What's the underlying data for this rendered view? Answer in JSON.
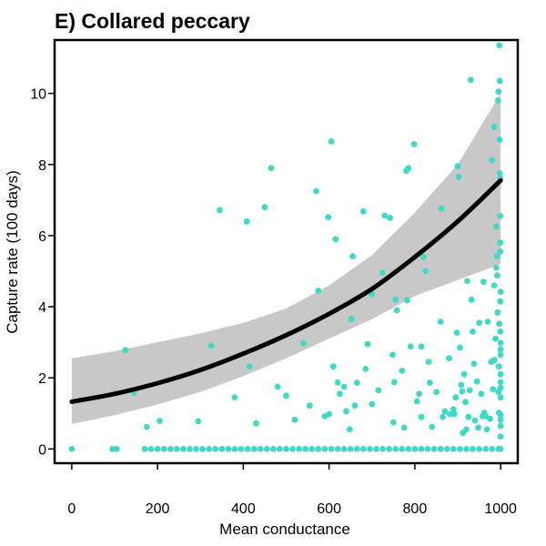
{
  "colors": {
    "points": "#40d9c8",
    "ribbon": "#c8c8c8",
    "fit": "#000000",
    "frame": "#000000"
  },
  "chart_data": {
    "type": "scatter",
    "title": "E) Collared peccary",
    "xlabel": "Mean conductance",
    "ylabel": "Capture rate (100 days)",
    "xlim": [
      -40,
      1040
    ],
    "ylim": [
      -0.4,
      11.5
    ],
    "xticks": [
      0,
      200,
      400,
      600,
      800,
      1000
    ],
    "yticks": [
      0,
      2,
      4,
      6,
      8,
      10
    ],
    "grid": false,
    "legend": "none",
    "fit": {
      "x": [
        0,
        100,
        200,
        300,
        400,
        500,
        600,
        700,
        800,
        900,
        1000
      ],
      "y": [
        1.33,
        1.55,
        1.85,
        2.22,
        2.68,
        3.2,
        3.8,
        4.5,
        5.4,
        6.4,
        7.55
      ],
      "lower": [
        0.7,
        0.95,
        1.25,
        1.6,
        2.05,
        2.55,
        3.1,
        3.65,
        4.3,
        4.75,
        5.2
      ],
      "upper": [
        2.55,
        2.75,
        3.0,
        3.25,
        3.55,
        3.95,
        4.6,
        5.45,
        6.65,
        8.0,
        10.0
      ]
    },
    "points": [
      [
        0,
        0
      ],
      [
        95,
        0
      ],
      [
        105,
        0
      ],
      [
        170,
        0
      ],
      [
        185,
        0
      ],
      [
        200,
        0
      ],
      [
        215,
        0
      ],
      [
        230,
        0
      ],
      [
        245,
        0
      ],
      [
        260,
        0
      ],
      [
        275,
        0
      ],
      [
        290,
        0
      ],
      [
        305,
        0
      ],
      [
        320,
        0
      ],
      [
        335,
        0
      ],
      [
        350,
        0
      ],
      [
        365,
        0
      ],
      [
        380,
        0
      ],
      [
        395,
        0
      ],
      [
        410,
        0
      ],
      [
        425,
        0
      ],
      [
        440,
        0
      ],
      [
        455,
        0
      ],
      [
        470,
        0
      ],
      [
        485,
        0
      ],
      [
        500,
        0
      ],
      [
        515,
        0
      ],
      [
        530,
        0
      ],
      [
        545,
        0
      ],
      [
        560,
        0
      ],
      [
        575,
        0
      ],
      [
        590,
        0
      ],
      [
        605,
        0
      ],
      [
        620,
        0
      ],
      [
        635,
        0
      ],
      [
        650,
        0
      ],
      [
        665,
        0
      ],
      [
        680,
        0
      ],
      [
        695,
        0
      ],
      [
        710,
        0
      ],
      [
        725,
        0
      ],
      [
        740,
        0
      ],
      [
        755,
        0
      ],
      [
        770,
        0
      ],
      [
        785,
        0
      ],
      [
        800,
        0
      ],
      [
        815,
        0
      ],
      [
        830,
        0
      ],
      [
        845,
        0
      ],
      [
        860,
        0
      ],
      [
        875,
        0
      ],
      [
        890,
        0
      ],
      [
        905,
        0
      ],
      [
        920,
        0
      ],
      [
        935,
        0
      ],
      [
        950,
        0
      ],
      [
        965,
        0
      ],
      [
        980,
        0
      ],
      [
        995,
        0
      ],
      [
        1000,
        0
      ],
      [
        125,
        2.78
      ],
      [
        145,
        1.58
      ],
      [
        175,
        0.62
      ],
      [
        205,
        0.79
      ],
      [
        295,
        0.78
      ],
      [
        325,
        2.9
      ],
      [
        345,
        6.72
      ],
      [
        380,
        1.45
      ],
      [
        408,
        6.4
      ],
      [
        415,
        2.32
      ],
      [
        430,
        0.72
      ],
      [
        450,
        6.8
      ],
      [
        465,
        7.9
      ],
      [
        480,
        1.75
      ],
      [
        500,
        1.5
      ],
      [
        520,
        0.82
      ],
      [
        540,
        2.97
      ],
      [
        555,
        1.22
      ],
      [
        570,
        7.25
      ],
      [
        575,
        4.45
      ],
      [
        590,
        0.92
      ],
      [
        598,
        6.52
      ],
      [
        600,
        0.98
      ],
      [
        605,
        8.65
      ],
      [
        610,
        2.32
      ],
      [
        615,
        5.9
      ],
      [
        620,
        1.87
      ],
      [
        625,
        1.55
      ],
      [
        635,
        1.75
      ],
      [
        640,
        1.06
      ],
      [
        648,
        0.55
      ],
      [
        652,
        3.65
      ],
      [
        655,
        5.42
      ],
      [
        660,
        1.22
      ],
      [
        665,
        1.86
      ],
      [
        680,
        6.68
      ],
      [
        685,
        2.25
      ],
      [
        690,
        2.95
      ],
      [
        700,
        4.35
      ],
      [
        700,
        1.26
      ],
      [
        715,
        1.65
      ],
      [
        725,
        4.95
      ],
      [
        730,
        6.56
      ],
      [
        742,
        6.5
      ],
      [
        748,
        2.65
      ],
      [
        750,
        0.75
      ],
      [
        752,
        1.88
      ],
      [
        755,
        4.2
      ],
      [
        758,
        3.9
      ],
      [
        770,
        2.2
      ],
      [
        775,
        0.6
      ],
      [
        780,
        7.82
      ],
      [
        782,
        4.18
      ],
      [
        785,
        7.9
      ],
      [
        790,
        2.88
      ],
      [
        798,
        8.57
      ],
      [
        805,
        1.34
      ],
      [
        810,
        1.55
      ],
      [
        815,
        2.88
      ],
      [
        815,
        0.9
      ],
      [
        820,
        5.4
      ],
      [
        825,
        5.0
      ],
      [
        832,
        2.45
      ],
      [
        835,
        1.86
      ],
      [
        840,
        0.62
      ],
      [
        850,
        1.6
      ],
      [
        860,
        3.58
      ],
      [
        862,
        6.76
      ],
      [
        865,
        0.9
      ],
      [
        870,
        1.06
      ],
      [
        880,
        2.55
      ],
      [
        882,
        0.98
      ],
      [
        890,
        1.12
      ],
      [
        892,
        0.98
      ],
      [
        895,
        1.45
      ],
      [
        898,
        3.27
      ],
      [
        900,
        7.95
      ],
      [
        902,
        7.65
      ],
      [
        905,
        2.85
      ],
      [
        908,
        1.8
      ],
      [
        910,
        1.62
      ],
      [
        912,
        0.45
      ],
      [
        915,
        2.1
      ],
      [
        918,
        1.32
      ],
      [
        920,
        0.55
      ],
      [
        922,
        4.72
      ],
      [
        925,
        0.9
      ],
      [
        928,
        1.65
      ],
      [
        930,
        10.38
      ],
      [
        932,
        4.2
      ],
      [
        935,
        3.3
      ],
      [
        938,
        2.4
      ],
      [
        940,
        0.8
      ],
      [
        945,
        1.9
      ],
      [
        948,
        0.6
      ],
      [
        950,
        3.55
      ],
      [
        955,
        1.55
      ],
      [
        958,
        0.92
      ],
      [
        960,
        4.7
      ],
      [
        962,
        1.02
      ],
      [
        965,
        0.92
      ],
      [
        968,
        0.55
      ],
      [
        970,
        3.58
      ],
      [
        975,
        0.85
      ],
      [
        978,
        2.45
      ],
      [
        980,
        8.12
      ],
      [
        982,
        1.68
      ],
      [
        985,
        9.05
      ],
      [
        985,
        4.6
      ],
      [
        986,
        2.5
      ],
      [
        988,
        3.1
      ],
      [
        990,
        6.25
      ],
      [
        990,
        5.1
      ],
      [
        991,
        5.42
      ],
      [
        992,
        4.88
      ],
      [
        993,
        3.84
      ],
      [
        994,
        9.8
      ],
      [
        995,
        10.05
      ],
      [
        995,
        1.6
      ],
      [
        996,
        1.02
      ],
      [
        996,
        2.32
      ],
      [
        997,
        11.35
      ],
      [
        997,
        3.52
      ],
      [
        998,
        10.35
      ],
      [
        998,
        8.7
      ],
      [
        998,
        7.75
      ],
      [
        999,
        7.62
      ],
      [
        999,
        6.55
      ],
      [
        999,
        5.8
      ],
      [
        999,
        5.55
      ],
      [
        999,
        4.15
      ],
      [
        999,
        3.3
      ],
      [
        1000,
        2.8
      ],
      [
        1000,
        2.65
      ],
      [
        1000,
        2.1
      ],
      [
        1000,
        1.88
      ],
      [
        1000,
        1.45
      ],
      [
        1000,
        0.95
      ],
      [
        1000,
        0.65
      ],
      [
        1000,
        0.35
      ],
      [
        1000,
        0.82
      ],
      [
        1000,
        1.72
      ],
      [
        1000,
        2.98
      ],
      [
        1000,
        4.42
      ]
    ]
  }
}
